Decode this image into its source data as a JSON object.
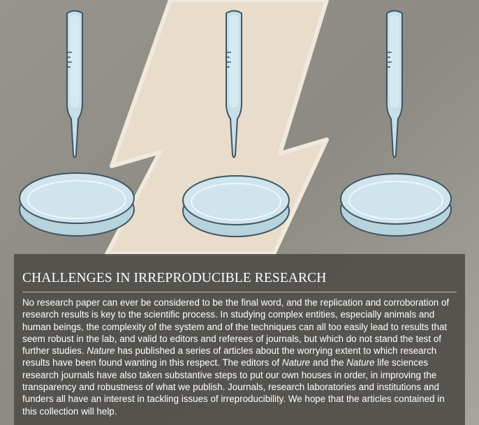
{
  "article": {
    "title": "CHALLENGES IN IRREPRODUCIBLE RESEARCH",
    "paragraph": [
      {
        "text": "No research paper can ever be considered to be the final word, and the replication and corroboration of research results is key to the scientific process. In studying complex entities, especially animals and human beings, the complexity of the system and of the techniques can all too easily lead to results that seem robust in the lab, and valid to editors and referees of journals, but which do not stand the test of further studies. ",
        "italic": false
      },
      {
        "text": "Nature",
        "italic": true
      },
      {
        "text": " has published a series of articles about the worrying extent to which research results have been found wanting in this respect. The editors of ",
        "italic": false
      },
      {
        "text": "Nature",
        "italic": true
      },
      {
        "text": " and the ",
        "italic": false
      },
      {
        "text": "Nature",
        "italic": true
      },
      {
        "text": " life sciences research journals have also taken substantive steps to put our own houses in order, in improving the transparency and robustness of what we publish. Journals, research laboratories and institutions and funders all have an interest in tackling issues of irreproducibility. We hope that the articles contained in this collection will help.",
        "italic": false
      }
    ]
  },
  "illustration": {
    "icons": [
      "pipette-icon",
      "petri-dish-icon"
    ],
    "colors": {
      "background": "#8e8c84",
      "bolt": "#e8dccb",
      "glass": "#c6dfe8",
      "glass_outline": "#3f5562",
      "panel": "#4e4c47"
    }
  }
}
